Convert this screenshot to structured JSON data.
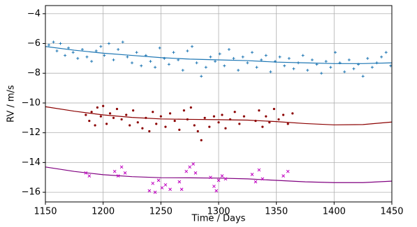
{
  "chart_data": {
    "type": "scatter",
    "xlabel": "Time / Days",
    "ylabel": "RV / m/s",
    "xlim": [
      1150,
      1450
    ],
    "ylim": [
      -16.65,
      -3.45
    ],
    "xticks": [
      1150,
      1200,
      1250,
      1300,
      1350,
      1400,
      1450
    ],
    "yticks": [
      {
        "value": -16,
        "label": "−16"
      },
      {
        "value": -14,
        "label": "−14"
      },
      {
        "value": -12,
        "label": "−12"
      },
      {
        "value": -10,
        "label": "−10"
      },
      {
        "value": -8,
        "label": "−8"
      },
      {
        "value": -6,
        "label": "−6"
      },
      {
        "value": -4,
        "label": "−4"
      }
    ],
    "grid": true,
    "series": [
      {
        "color": "#1f77b4",
        "marker": "plus",
        "x": [
          1153,
          1157,
          1160,
          1163,
          1167,
          1170,
          1174,
          1178,
          1182,
          1186,
          1190,
          1194,
          1198,
          1201,
          1205,
          1209,
          1213,
          1217,
          1221,
          1225,
          1229,
          1233,
          1237,
          1241,
          1245,
          1249,
          1253,
          1257,
          1261,
          1265,
          1269,
          1273,
          1277,
          1281,
          1285,
          1289,
          1293,
          1297,
          1301,
          1305,
          1309,
          1313,
          1317,
          1321,
          1325,
          1329,
          1333,
          1337,
          1341,
          1345,
          1349,
          1353,
          1357,
          1361,
          1365,
          1369,
          1373,
          1377,
          1381,
          1385,
          1389,
          1393,
          1397,
          1401,
          1405,
          1409,
          1413,
          1417,
          1421,
          1425,
          1429,
          1433,
          1437,
          1441,
          1445,
          1449
        ],
        "values": [
          -6.1,
          -5.9,
          -6.5,
          -6.0,
          -6.8,
          -6.3,
          -6.6,
          -7.0,
          -6.4,
          -6.9,
          -7.2,
          -6.5,
          -6.2,
          -6.8,
          -6.0,
          -7.1,
          -6.4,
          -5.9,
          -6.9,
          -7.3,
          -6.6,
          -7.5,
          -6.8,
          -7.2,
          -7.6,
          -6.3,
          -7.0,
          -7.4,
          -6.6,
          -7.1,
          -7.8,
          -6.5,
          -6.2,
          -7.3,
          -8.2,
          -7.6,
          -6.9,
          -7.2,
          -6.7,
          -7.5,
          -6.4,
          -7.0,
          -7.8,
          -6.9,
          -7.3,
          -6.6,
          -7.6,
          -7.1,
          -6.8,
          -7.9,
          -7.2,
          -6.9,
          -7.5,
          -7.0,
          -7.7,
          -7.3,
          -6.8,
          -7.8,
          -7.1,
          -7.4,
          -8.0,
          -7.2,
          -7.6,
          -6.6,
          -7.3,
          -7.9,
          -7.1,
          -7.7,
          -7.4,
          -8.2,
          -7.0,
          -7.6,
          -7.3,
          -6.9,
          -6.6,
          -7.5
        ]
      },
      {
        "color": "#8b0000",
        "marker": "dot",
        "x": [
          1185,
          1188,
          1190,
          1193,
          1195,
          1198,
          1200,
          1203,
          1206,
          1209,
          1212,
          1216,
          1220,
          1223,
          1226,
          1230,
          1234,
          1237,
          1240,
          1243,
          1246,
          1250,
          1254,
          1258,
          1262,
          1266,
          1270,
          1273,
          1276,
          1279,
          1282,
          1285,
          1288,
          1292,
          1296,
          1300,
          1303,
          1306,
          1310,
          1314,
          1318,
          1322,
          1332,
          1335,
          1338,
          1341,
          1344,
          1348,
          1352,
          1356,
          1360,
          1364
        ],
        "values": [
          -10.8,
          -11.2,
          -10.6,
          -11.5,
          -10.3,
          -10.9,
          -10.2,
          -11.4,
          -10.7,
          -11.0,
          -10.4,
          -11.1,
          -10.8,
          -11.5,
          -10.5,
          -11.3,
          -11.7,
          -11.0,
          -11.9,
          -10.6,
          -11.4,
          -10.9,
          -11.6,
          -10.7,
          -11.2,
          -11.8,
          -10.5,
          -11.1,
          -10.3,
          -11.5,
          -11.9,
          -12.5,
          -11.0,
          -11.6,
          -10.9,
          -11.3,
          -10.8,
          -11.7,
          -11.1,
          -10.6,
          -11.4,
          -10.9,
          -11.2,
          -10.5,
          -11.6,
          -10.9,
          -11.3,
          -10.4,
          -11.1,
          -10.8,
          -11.4,
          -10.7
        ]
      },
      {
        "color": "#c000c0",
        "marker": "cross",
        "x": [
          1185,
          1188,
          1210,
          1213,
          1216,
          1219,
          1240,
          1243,
          1245,
          1248,
          1251,
          1254,
          1258,
          1266,
          1268,
          1272,
          1275,
          1278,
          1280,
          1293,
          1296,
          1298,
          1300,
          1303,
          1306,
          1329,
          1332,
          1335,
          1338,
          1356,
          1360
        ],
        "values": [
          -14.7,
          -14.9,
          -14.6,
          -14.9,
          -14.3,
          -14.7,
          -15.9,
          -15.4,
          -16.0,
          -15.2,
          -15.7,
          -15.5,
          -15.8,
          -15.3,
          -15.8,
          -14.6,
          -14.3,
          -14.1,
          -14.7,
          -15.0,
          -15.6,
          -15.9,
          -15.2,
          -14.9,
          -15.1,
          -14.8,
          -15.3,
          -14.5,
          -15.1,
          -14.9,
          -14.6
        ]
      }
    ],
    "fits": [
      {
        "color": "#1f77b4",
        "x": [
          1150,
          1175,
          1200,
          1225,
          1250,
          1275,
          1300,
          1325,
          1350,
          1375,
          1400,
          1425,
          1450
        ],
        "values": [
          -6.2,
          -6.45,
          -6.65,
          -6.8,
          -6.95,
          -7.05,
          -7.1,
          -7.15,
          -7.25,
          -7.3,
          -7.35,
          -7.35,
          -7.3
        ]
      },
      {
        "color": "#8b0000",
        "x": [
          1150,
          1175,
          1200,
          1225,
          1250,
          1275,
          1300,
          1325,
          1350,
          1375,
          1400,
          1425,
          1450
        ],
        "values": [
          -10.25,
          -10.55,
          -10.8,
          -10.97,
          -11.07,
          -11.1,
          -11.12,
          -11.15,
          -11.25,
          -11.38,
          -11.47,
          -11.45,
          -11.28
        ]
      },
      {
        "color": "#800080",
        "x": [
          1150,
          1175,
          1200,
          1225,
          1250,
          1275,
          1300,
          1325,
          1350,
          1375,
          1400,
          1425,
          1450
        ],
        "values": [
          -14.3,
          -14.6,
          -14.82,
          -14.95,
          -15.02,
          -15.03,
          -15.05,
          -15.1,
          -15.2,
          -15.3,
          -15.35,
          -15.35,
          -15.25
        ]
      }
    ]
  }
}
